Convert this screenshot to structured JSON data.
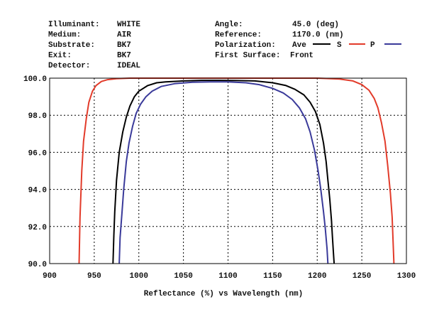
{
  "header": {
    "left": [
      {
        "label": "Illuminant:",
        "value": "WHITE"
      },
      {
        "label": "Medium:",
        "value": "AIR"
      },
      {
        "label": "Substrate:",
        "value": "BK7"
      },
      {
        "label": "Exit:",
        "value": "BK7"
      },
      {
        "label": "Detector:",
        "value": "IDEAL"
      }
    ],
    "right": [
      {
        "label": "Angle:",
        "value": "45.0 (deg)"
      },
      {
        "label": "Reference:",
        "value": "1170.0 (nm)"
      },
      {
        "label": "Polarization:",
        "value": "Ave"
      },
      {
        "label": "First Surface:",
        "value": "Front"
      }
    ]
  },
  "colors": {
    "Ave": "#000000",
    "S": "#e23b2a",
    "P": "#3a3a9a"
  },
  "chart_data": {
    "type": "line",
    "title": "",
    "xlabel": "Reflectance (%)  vs  Wavelength (nm)",
    "ylabel": "",
    "xlim": [
      900,
      1300
    ],
    "ylim": [
      90.0,
      100.0
    ],
    "x_ticks": [
      "900",
      "950",
      "1000",
      "1050",
      "1100",
      "1150",
      "1200",
      "1250",
      "1300"
    ],
    "y_ticks": [
      "90.0",
      "92.0",
      "94.0",
      "96.0",
      "98.0",
      "100.0"
    ],
    "grid": true,
    "legend": "top-right",
    "series": [
      {
        "name": "Ave",
        "x": [
          971,
          972,
          973,
          975,
          978,
          982,
          986,
          990,
          995,
          1000,
          1010,
          1020,
          1030,
          1050,
          1070,
          1090,
          1110,
          1130,
          1150,
          1165,
          1175,
          1185,
          1192,
          1198,
          1203,
          1207,
          1210,
          1212,
          1214,
          1216,
          1217,
          1218,
          1219
        ],
        "values": [
          90.0,
          91.5,
          92.8,
          94.5,
          96.0,
          97.1,
          97.9,
          98.5,
          99.0,
          99.3,
          99.6,
          99.75,
          99.8,
          99.85,
          99.88,
          99.88,
          99.87,
          99.85,
          99.75,
          99.6,
          99.4,
          99.1,
          98.7,
          98.2,
          97.5,
          96.5,
          95.5,
          94.5,
          93.5,
          92.3,
          91.5,
          90.7,
          90.0
        ]
      },
      {
        "name": "S",
        "x": [
          933,
          934,
          936,
          938,
          941,
          944,
          948,
          952,
          958,
          965,
          975,
          990,
          1020,
          1080,
          1140,
          1200,
          1225,
          1240,
          1250,
          1258,
          1264,
          1268,
          1272,
          1276,
          1279,
          1282,
          1284,
          1285,
          1286
        ],
        "values": [
          90.0,
          92.5,
          95.0,
          96.6,
          97.8,
          98.7,
          99.3,
          99.6,
          99.82,
          99.92,
          99.97,
          100.0,
          100.0,
          100.0,
          100.0,
          100.0,
          99.95,
          99.85,
          99.65,
          99.35,
          98.9,
          98.4,
          97.6,
          96.6,
          95.3,
          93.8,
          92.5,
          91.3,
          90.0
        ]
      },
      {
        "name": "P",
        "x": [
          978,
          979,
          981,
          983,
          986,
          989,
          993,
          997,
          1002,
          1008,
          1015,
          1025,
          1040,
          1060,
          1080,
          1100,
          1120,
          1135,
          1150,
          1162,
          1172,
          1180,
          1187,
          1192,
          1197,
          1201,
          1204,
          1207,
          1209,
          1211,
          1212
        ],
        "values": [
          90.0,
          91.4,
          92.7,
          94.0,
          95.5,
          96.5,
          97.4,
          98.1,
          98.6,
          99.0,
          99.3,
          99.55,
          99.7,
          99.78,
          99.8,
          99.8,
          99.75,
          99.65,
          99.45,
          99.2,
          98.85,
          98.4,
          97.8,
          97.1,
          96.1,
          95.0,
          94.0,
          92.8,
          91.9,
          90.8,
          90.0
        ]
      }
    ]
  }
}
